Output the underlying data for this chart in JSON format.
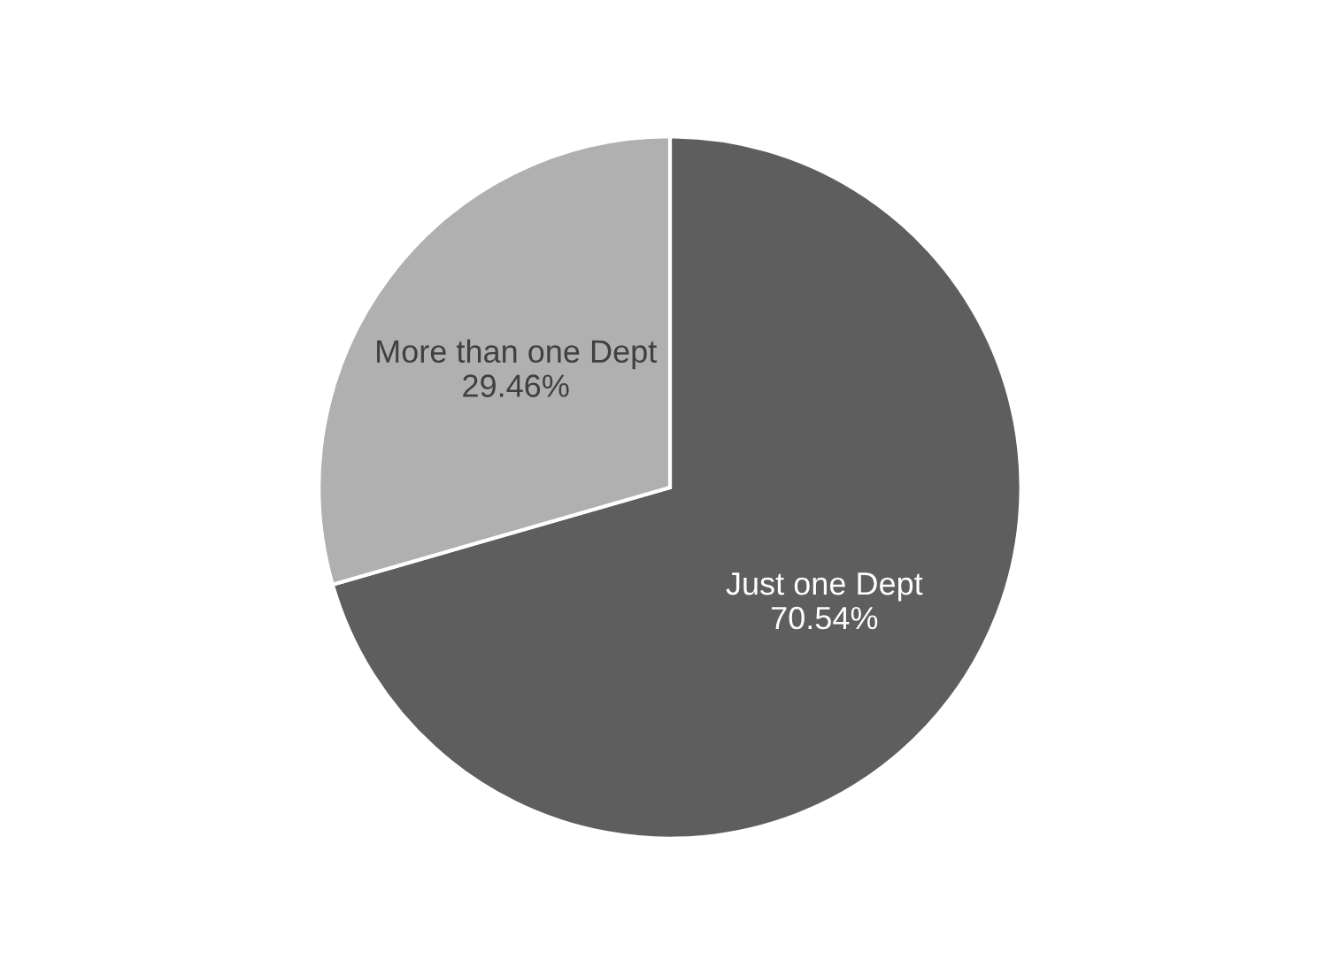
{
  "chart_data": {
    "type": "pie",
    "categories": [
      "Just one Dept",
      "More than one Dept"
    ],
    "values": [
      70.54,
      29.46
    ],
    "colors": [
      "#5e5e5e",
      "#b0b0b0"
    ],
    "value_labels": [
      "70.54%",
      "29.46%"
    ],
    "legend": false
  }
}
